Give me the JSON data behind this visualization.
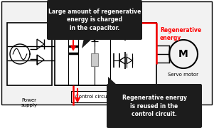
{
  "callout_top_text": "Large amount of regenerative\nenergy is charged\nin the capacitor.",
  "callout_bot_text": "Regenerative energy\nis reused in the\ncontrol circuit.",
  "label_power": "Power\nsupply",
  "label_control": "Control circuit",
  "label_servo": "Servo motor",
  "label_regen": "Regenerative\nenergy",
  "red_color": "#ff0000",
  "black_color": "#000000",
  "white_color": "#ffffff",
  "dark_color": "#1c1c1c",
  "gray_color": "#888888",
  "figw": 3.01,
  "figh": 1.8,
  "dpi": 100
}
